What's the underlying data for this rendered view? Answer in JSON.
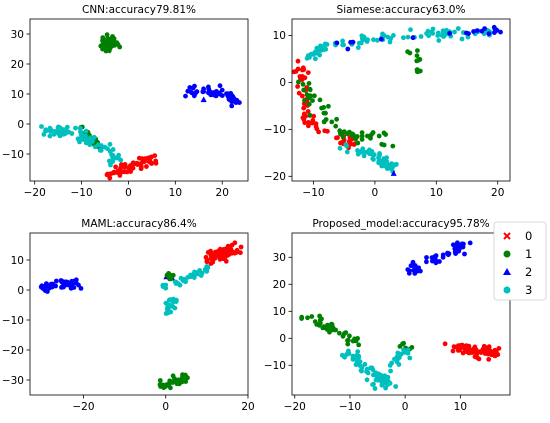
{
  "colors": {
    "0": "#ff0000",
    "1": "#008000",
    "2": "#0000ff",
    "3": "#00bfbf"
  },
  "legend": {
    "placement": "right",
    "entries": [
      {
        "label": "0",
        "marker": "x",
        "class": "0"
      },
      {
        "label": "1",
        "marker": "circle",
        "class": "1"
      },
      {
        "label": "2",
        "marker": "triangle",
        "class": "2"
      },
      {
        "label": "3",
        "marker": "circle",
        "class": "3"
      }
    ]
  },
  "chart_data": [
    {
      "type": "scatter",
      "title": "CNN:accuracy79.81%",
      "xlim": [
        -21,
        25.5
      ],
      "ylim": [
        -19,
        35
      ],
      "xticks": [
        -20,
        -10,
        0,
        10,
        20
      ],
      "yticks": [
        -10,
        0,
        10,
        20,
        30
      ],
      "clusters": [
        {
          "class": "0",
          "points": [
            [
              -5,
              -17
            ],
            [
              -3,
              -16
            ],
            [
              -1,
              -15
            ],
            [
              1,
              -14
            ],
            [
              3,
              -13
            ],
            [
              4,
              -12
            ],
            [
              5,
              -12
            ]
          ],
          "spread": 1.0,
          "density": 60
        },
        {
          "class": "1",
          "points": [
            [
              -5,
              29
            ],
            [
              -4,
              27
            ],
            [
              -4,
              25
            ]
          ],
          "spread": 0.9,
          "density": 45
        },
        {
          "class": "1",
          "points": [
            [
              -10,
              -1
            ],
            [
              -8,
              -5
            ],
            [
              -6,
              -8
            ]
          ],
          "spread": 0.5,
          "density": 20
        },
        {
          "class": "2",
          "points": [
            [
              13,
              11
            ],
            [
              17,
              11
            ],
            [
              20,
              10
            ],
            [
              22,
              9
            ],
            [
              23,
              7
            ]
          ],
          "spread": 0.7,
          "density": 55
        },
        {
          "class": "2",
          "points": [
            [
              16,
              8
            ]
          ],
          "spread": 0.2,
          "density": 2
        },
        {
          "class": "3",
          "points": [
            [
              -19,
              -2
            ],
            [
              -15,
              -2
            ],
            [
              -13,
              -3
            ]
          ],
          "spread": 0.7,
          "density": 35
        },
        {
          "class": "3",
          "points": [
            [
              -11,
              -3
            ],
            [
              -9,
              -5
            ],
            [
              -7,
              -7
            ],
            [
              -5,
              -9
            ],
            [
              -3,
              -11
            ],
            [
              -2,
              -12
            ]
          ],
          "spread": 0.8,
          "density": 45
        }
      ]
    },
    {
      "type": "scatter",
      "title": "Siamese:accuracy63.0%",
      "xlim": [
        -13.5,
        22
      ],
      "ylim": [
        -21,
        13.5
      ],
      "xticks": [
        -10,
        0,
        10,
        20
      ],
      "yticks": [
        -20,
        -10,
        0,
        10
      ],
      "clusters": [
        {
          "class": "3",
          "points": [
            [
              -11,
              5
            ],
            [
              -9,
              7
            ],
            [
              -6,
              8
            ],
            [
              -2,
              9
            ],
            [
              3,
              9.5
            ],
            [
              8,
              10
            ],
            [
              12,
              10.5
            ],
            [
              16,
              10.5
            ],
            [
              19,
              11
            ]
          ],
          "spread": 0.6,
          "density": 90
        },
        {
          "class": "0",
          "points": [
            [
              -12,
              4
            ],
            [
              -12,
              0
            ],
            [
              -11.5,
              -4
            ],
            [
              -11,
              -7
            ],
            [
              -9,
              -10
            ],
            [
              -6,
              -12
            ],
            [
              -3,
              -13
            ]
          ],
          "spread": 0.6,
          "density": 60
        },
        {
          "class": "1",
          "points": [
            [
              -11.5,
              2
            ],
            [
              -11,
              -2
            ],
            [
              -10,
              -5
            ],
            [
              -8,
              -8
            ],
            [
              -5,
              -11
            ],
            [
              -2,
              -12
            ],
            [
              1,
              -12
            ],
            [
              3,
              -13
            ]
          ],
          "spread": 0.7,
          "density": 55
        },
        {
          "class": "1",
          "points": [
            [
              6,
              7
            ],
            [
              7,
              4
            ],
            [
              7,
              2
            ]
          ],
          "spread": 0.4,
          "density": 12
        },
        {
          "class": "3",
          "points": [
            [
              -6,
              -13
            ],
            [
              -2,
              -15
            ],
            [
              0,
              -16
            ],
            [
              2,
              -17
            ],
            [
              3,
              -18
            ]
          ],
          "spread": 0.7,
          "density": 45
        },
        {
          "class": "2",
          "points": [
            [
              -6,
              8
            ],
            [
              15,
              11
            ],
            [
              19,
              11
            ],
            [
              20,
              11
            ]
          ],
          "spread": 0.5,
          "density": 20
        },
        {
          "class": "2",
          "points": [
            [
              3,
              -19.5
            ]
          ],
          "spread": 0.1,
          "density": 1
        }
      ]
    },
    {
      "type": "scatter",
      "title": "MAML:accuracy86.4%",
      "xlim": [
        -33,
        20
      ],
      "ylim": [
        -35,
        19
      ],
      "xticks": [
        -20,
        0,
        20
      ],
      "yticks": [
        -30,
        -20,
        -10,
        0,
        10
      ],
      "clusters": [
        {
          "class": "0",
          "points": [
            [
              11,
              10
            ],
            [
              13,
              12
            ],
            [
              15,
              13
            ],
            [
              17,
              14
            ],
            [
              13,
              9
            ]
          ],
          "spread": 1.1,
          "density": 70
        },
        {
          "class": "2",
          "points": [
            [
              -30,
              1
            ],
            [
              -27,
              1.5
            ],
            [
              -24,
              2
            ],
            [
              -21,
              2
            ]
          ],
          "spread": 0.8,
          "density": 45
        },
        {
          "class": "2",
          "points": [
            [
              0,
              4.5
            ],
            [
              2,
              4.5
            ]
          ],
          "spread": 0.3,
          "density": 6
        },
        {
          "class": "1",
          "points": [
            [
              0,
              5
            ],
            [
              1,
              4
            ],
            [
              2,
              5
            ]
          ],
          "spread": 0.5,
          "density": 12
        },
        {
          "class": "1",
          "points": [
            [
              -1,
              -32
            ],
            [
              1,
              -31
            ],
            [
              3,
              -30
            ],
            [
              5,
              -29
            ]
          ],
          "spread": 0.8,
          "density": 40
        },
        {
          "class": "3",
          "points": [
            [
              3,
              2
            ],
            [
              5,
              4
            ],
            [
              8,
              6
            ],
            [
              10,
              7
            ]
          ],
          "spread": 0.7,
          "density": 30
        },
        {
          "class": "3",
          "points": [
            [
              2,
              -3
            ],
            [
              1,
              -5
            ],
            [
              0.5,
              -8
            ]
          ],
          "spread": 0.6,
          "density": 25
        },
        {
          "class": "3",
          "points": [
            [
              -0.5,
              1
            ],
            [
              -0.5,
              2
            ]
          ],
          "spread": 0.3,
          "density": 5
        }
      ]
    },
    {
      "type": "scatter",
      "title": "Proposed_model:accuracy95.78%",
      "xlim": [
        -20.5,
        19
      ],
      "ylim": [
        -21,
        39
      ],
      "xticks": [
        -20,
        -10,
        0,
        10
      ],
      "yticks": [
        -10,
        0,
        10,
        20,
        30
      ],
      "clusters": [
        {
          "class": "0",
          "points": [
            [
              9,
              -4
            ],
            [
              11,
              -4
            ],
            [
              13,
              -4
            ],
            [
              15,
              -5
            ],
            [
              17,
              -5
            ],
            [
              12,
              -6
            ],
            [
              14,
              -3
            ]
          ],
          "spread": 0.9,
          "density": 70
        },
        {
          "class": "2",
          "points": [
            [
              0,
              24
            ],
            [
              3,
              27
            ],
            [
              6,
              30
            ],
            [
              9,
              33
            ],
            [
              11,
              35
            ]
          ],
          "spread": 0.7,
          "density": 45
        },
        {
          "class": "1",
          "points": [
            [
              -18,
              8
            ],
            [
              -16,
              6
            ],
            [
              -14,
              4
            ],
            [
              -12,
              2
            ],
            [
              -10,
              0
            ],
            [
              -9,
              -2
            ]
          ],
          "spread": 0.7,
          "density": 40
        },
        {
          "class": "1",
          "points": [
            [
              -1,
              -2
            ],
            [
              1,
              -4
            ]
          ],
          "spread": 0.5,
          "density": 8
        },
        {
          "class": "3",
          "points": [
            [
              -10,
              -5
            ],
            [
              -8,
              -9
            ],
            [
              -6,
              -12
            ],
            [
              -4,
              -14
            ],
            [
              -3,
              -17
            ],
            [
              -5,
              -18
            ]
          ],
          "spread": 1.0,
          "density": 60
        },
        {
          "class": "3",
          "points": [
            [
              -3,
              -10
            ],
            [
              -1,
              -7
            ],
            [
              0,
              -5
            ]
          ],
          "spread": 0.6,
          "density": 15
        }
      ]
    }
  ]
}
